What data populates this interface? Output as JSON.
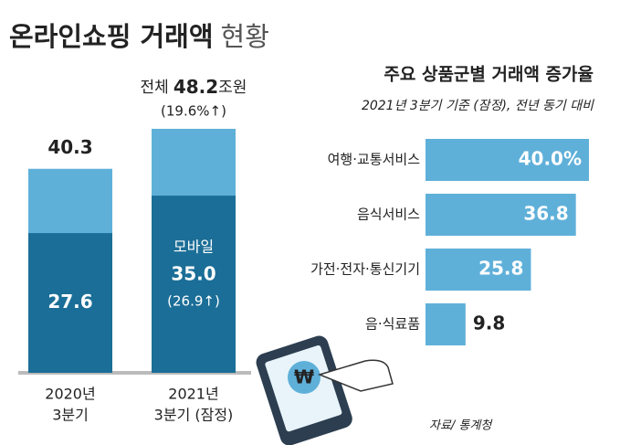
{
  "title": "온라인쇼핑 거래액",
  "title_suffix": "현황",
  "source": "자료/ 통계청",
  "chart_data": [
    {
      "type": "overlap-bar",
      "unit": "조원",
      "categories": [
        [
          "2020년",
          "3분기"
        ],
        [
          "2021년",
          "3분기 (잠정)"
        ]
      ],
      "ylim": [
        0,
        50
      ],
      "series": [
        {
          "name": "전체",
          "color": "#5fb0d9",
          "values": [
            40.3,
            48.2
          ],
          "growth_labels": [
            null,
            "(19.6%↑)"
          ]
        },
        {
          "name": "모바일",
          "color": "#1b6e97",
          "values": [
            27.6,
            35.0
          ],
          "value_labels": [
            "27.6",
            "35.0"
          ],
          "growth_labels": [
            null,
            "(26.9↑)"
          ]
        }
      ]
    },
    {
      "type": "hbar",
      "title": "주요 상품군별 거래액 증가율",
      "subtitle": "2021년 3분기 기준 (잠정), 전년 동기 대비",
      "categories": [
        "여행·교통서비스",
        "음식서비스",
        "가전·전자·통신기기",
        "음·식료품"
      ],
      "values": [
        40.0,
        36.8,
        25.8,
        9.8
      ],
      "value_labels": [
        "40.0%",
        "36.8",
        "25.8",
        "9.8"
      ],
      "xlim": [
        0,
        40
      ],
      "color": "#5fb0d9"
    }
  ]
}
